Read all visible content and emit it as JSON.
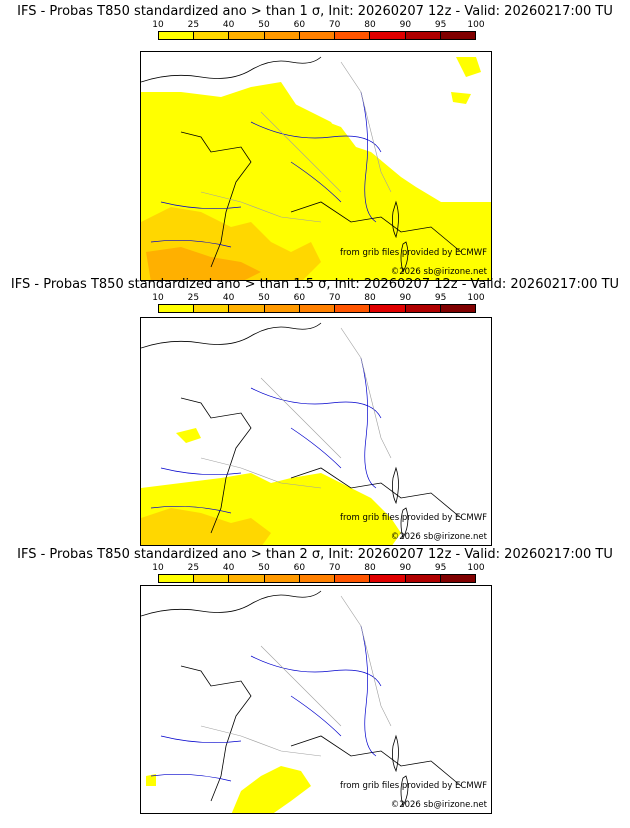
{
  "panels": [
    {
      "title": "IFS - Probas T850  standardized ano > than 1 σ, Init: 20260207 12z - Valid: 20260217:00 TU",
      "coverage": "large"
    },
    {
      "title": "IFS - Probas T850  standardized ano > than 1.5 σ, Init: 20260207 12z - Valid: 20260217:00 TU",
      "coverage": "medium"
    },
    {
      "title": "IFS - Probas T850  standardized ano > than 2 σ, Init: 20260207 12z - Valid: 20260217:00 TU",
      "coverage": "small"
    }
  ],
  "legend": {
    "labels": [
      "10",
      "25",
      "40",
      "50",
      "60",
      "70",
      "80",
      "90",
      "95",
      "100"
    ],
    "colors": [
      "#ffff00",
      "#ffd700",
      "#ffb000",
      "#ff9900",
      "#ff8000",
      "#ff5500",
      "#e00000",
      "#b00000",
      "#800000"
    ]
  },
  "credits": {
    "source": "from grib files provided by ECMWF",
    "copyright": "©2026 sb@irizone.net"
  },
  "colors": {
    "prob_low": "#ffff00",
    "prob_mid": "#ffd700",
    "prob_high": "#ffb000",
    "coast": "#000000",
    "rivers": "#0000cc",
    "borders": "#a0a0a0"
  }
}
